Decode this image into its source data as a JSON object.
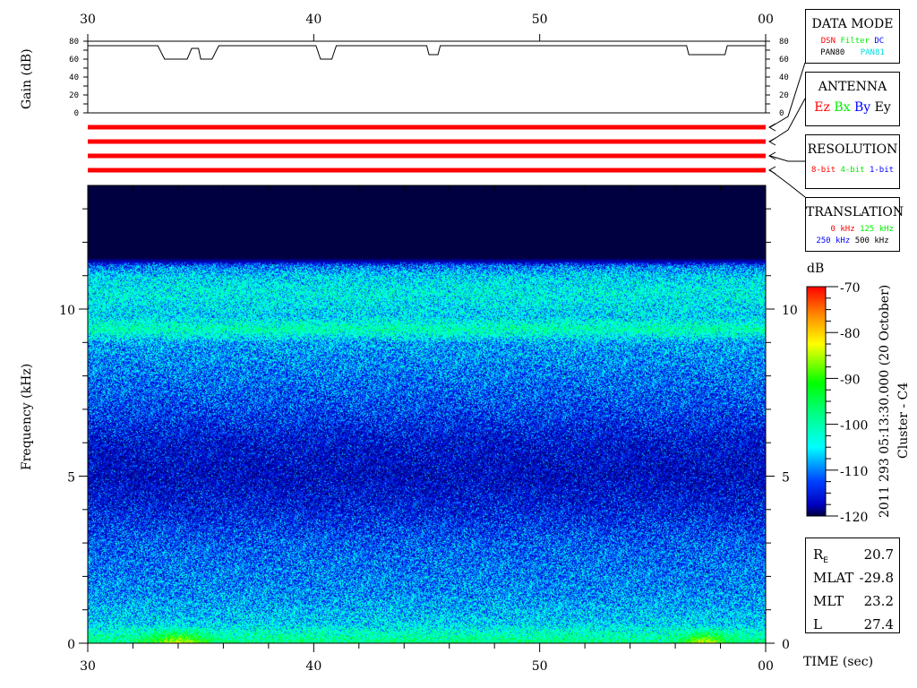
{
  "chart_data": [
    {
      "type": "line",
      "ylabel": "Gain (dB)",
      "ylim": [
        0,
        80
      ],
      "yticks": [
        "80",
        "60",
        "40",
        "20",
        "0"
      ],
      "xlim": [
        30,
        60
      ],
      "xticks": [
        "30",
        "40",
        "50",
        "00"
      ],
      "series": [
        {
          "x": [
            30,
            33.1,
            33.4,
            34.4,
            34.6,
            34.9,
            35.0,
            35.5,
            35.8,
            40.1,
            40.3,
            40.8,
            41.0,
            45.0,
            45.1,
            45.5,
            45.6,
            56.5,
            56.6,
            58.2,
            58.3,
            60
          ],
          "y": [
            75,
            75,
            60,
            60,
            72,
            72,
            60,
            60,
            75,
            75,
            60,
            60,
            75,
            75,
            65,
            65,
            75,
            75,
            65,
            65,
            75,
            75
          ]
        }
      ]
    },
    {
      "type": "heatmap",
      "ylabel": "Frequency (kHz)",
      "xlabel": "TIME (sec)",
      "xlim": [
        30,
        60
      ],
      "xticks": [
        "30",
        "40",
        "50",
        "00"
      ],
      "ylim": [
        0,
        13.7
      ],
      "yticks": [
        "0",
        "5",
        "10"
      ],
      "colorbar": {
        "label": "dB",
        "range": [
          -120,
          -70
        ],
        "ticks": [
          "-70",
          "-80",
          "-90",
          "-100",
          "-110",
          "-120"
        ]
      },
      "mean_level_db_by_frequency": {
        "freq_khz": [
          0,
          0.3,
          0.6,
          1.5,
          3,
          4,
          5,
          6,
          7,
          8,
          9,
          9.4,
          9.8,
          10.5,
          11,
          11.3,
          11.6,
          13.7
        ],
        "db": [
          -100,
          -104,
          -108,
          -111,
          -113,
          -116,
          -118,
          -117,
          -114,
          -112,
          -110,
          -103,
          -108,
          -106,
          -108,
          -112,
          -128,
          -128
        ]
      }
    }
  ],
  "time_axis": {
    "labels": [
      "30",
      "40",
      "50",
      "00"
    ],
    "title": "TIME (sec)"
  },
  "freq_axis": {
    "title": "Frequency (kHz)",
    "labels": [
      "0",
      "5",
      "10"
    ]
  },
  "gain_axis": {
    "title": "Gain (dB)",
    "labels": [
      "80",
      "60",
      "40",
      "20",
      "0"
    ]
  },
  "panels": {
    "data_mode": {
      "title": "DATA MODE",
      "items": [
        {
          "text": "DSN",
          "color": "#ff0000"
        },
        {
          "text": "Filter",
          "color": "#00e000"
        },
        {
          "text": "DC",
          "color": "#0000ff"
        },
        {
          "text": "PAN80",
          "color": "#000000"
        },
        {
          "text": "PAN81",
          "color": "#00e0e0"
        }
      ]
    },
    "antenna": {
      "title": "ANTENNA",
      "items": [
        {
          "text": "Ez",
          "color": "#ff0000"
        },
        {
          "text": "Bx",
          "color": "#00e000"
        },
        {
          "text": "By",
          "color": "#0000ff"
        },
        {
          "text": "Ey",
          "color": "#000000"
        }
      ]
    },
    "resolution": {
      "title": "RESOLUTION",
      "items": [
        {
          "text": "8-bit",
          "color": "#ff0000"
        },
        {
          "text": "4-bit",
          "color": "#00e000"
        },
        {
          "text": "1-bit",
          "color": "#0000ff"
        }
      ]
    },
    "translation": {
      "title": "TRANSLATION",
      "items": [
        {
          "text": "0 kHz",
          "color": "#ff0000"
        },
        {
          "text": "125 kHz",
          "color": "#00e000"
        },
        {
          "text": "250 kHz",
          "color": "#0000ff"
        },
        {
          "text": "500 kHz",
          "color": "#000000"
        }
      ]
    }
  },
  "status_bars": {
    "color": "#ff0000",
    "count": 4
  },
  "colorbar_unit": "dB",
  "colorbar_ticks": [
    "-70",
    "-80",
    "-90",
    "-100",
    "-110",
    "-120"
  ],
  "side_title": "2011 293 05:13:30.000 (20 October)",
  "side_subtitle": "Cluster - C4",
  "info": [
    {
      "label": "R",
      "sub": "E",
      "value": "20.7"
    },
    {
      "label": "MLAT",
      "value": "-29.8"
    },
    {
      "label": "MLT",
      "value": "23.2"
    },
    {
      "label": "L",
      "value": "27.4"
    }
  ]
}
